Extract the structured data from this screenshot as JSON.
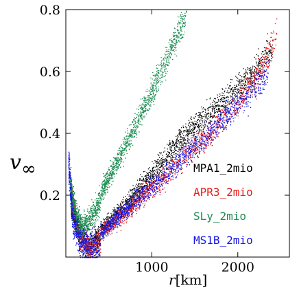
{
  "chart_data": {
    "type": "scatter",
    "xlabel": "r[km]",
    "ylabel": "v∞",
    "xlim": [
      0,
      2600
    ],
    "ylim": [
      0,
      0.8
    ],
    "x_ticks": [
      1000,
      2000
    ],
    "y_ticks": [
      0.2,
      0.4,
      0.6,
      0.8
    ],
    "x_tick_labels": [
      "1000",
      "2000"
    ],
    "y_tick_labels": [
      "0.2",
      "0.4",
      "0.6",
      "0.8"
    ],
    "legend_placement": "bottom-right",
    "grid": false,
    "series": [
      {
        "name": "MPA1_2mio",
        "color": "#000000",
        "marker": "dots",
        "trend_points": [
          [
            60,
            0.2
          ],
          [
            150,
            0.1
          ],
          [
            250,
            0.06
          ],
          [
            400,
            0.09
          ],
          [
            700,
            0.17
          ],
          [
            1000,
            0.27
          ],
          [
            1300,
            0.37
          ],
          [
            1600,
            0.45
          ],
          [
            1900,
            0.52
          ],
          [
            2200,
            0.6
          ],
          [
            2400,
            0.68
          ]
        ]
      },
      {
        "name": "APR3_2mio",
        "color": "#e8201e",
        "marker": "dots",
        "trend_points": [
          [
            60,
            0.22
          ],
          [
            150,
            0.1
          ],
          [
            280,
            0.05
          ],
          [
            450,
            0.09
          ],
          [
            750,
            0.16
          ],
          [
            1100,
            0.25
          ],
          [
            1400,
            0.33
          ],
          [
            1700,
            0.41
          ],
          [
            2000,
            0.5
          ],
          [
            2300,
            0.62
          ],
          [
            2450,
            0.73
          ]
        ]
      },
      {
        "name": "SLy_2mio",
        "color": "#1e8c53",
        "marker": "dots",
        "trend_points": [
          [
            50,
            0.25
          ],
          [
            120,
            0.15
          ],
          [
            200,
            0.12
          ],
          [
            300,
            0.16
          ],
          [
            500,
            0.26
          ],
          [
            700,
            0.37
          ],
          [
            900,
            0.48
          ],
          [
            1100,
            0.6
          ],
          [
            1300,
            0.72
          ],
          [
            1400,
            0.8
          ]
        ]
      },
      {
        "name": "MS1B_2mio",
        "color": "#1414e6",
        "marker": "dots",
        "trend_points": [
          [
            30,
            0.34
          ],
          [
            80,
            0.15
          ],
          [
            180,
            0.08
          ],
          [
            350,
            0.07
          ],
          [
            600,
            0.13
          ],
          [
            900,
            0.21
          ],
          [
            1200,
            0.28
          ],
          [
            1500,
            0.36
          ],
          [
            1800,
            0.44
          ],
          [
            2100,
            0.52
          ],
          [
            2350,
            0.6
          ]
        ]
      }
    ]
  }
}
